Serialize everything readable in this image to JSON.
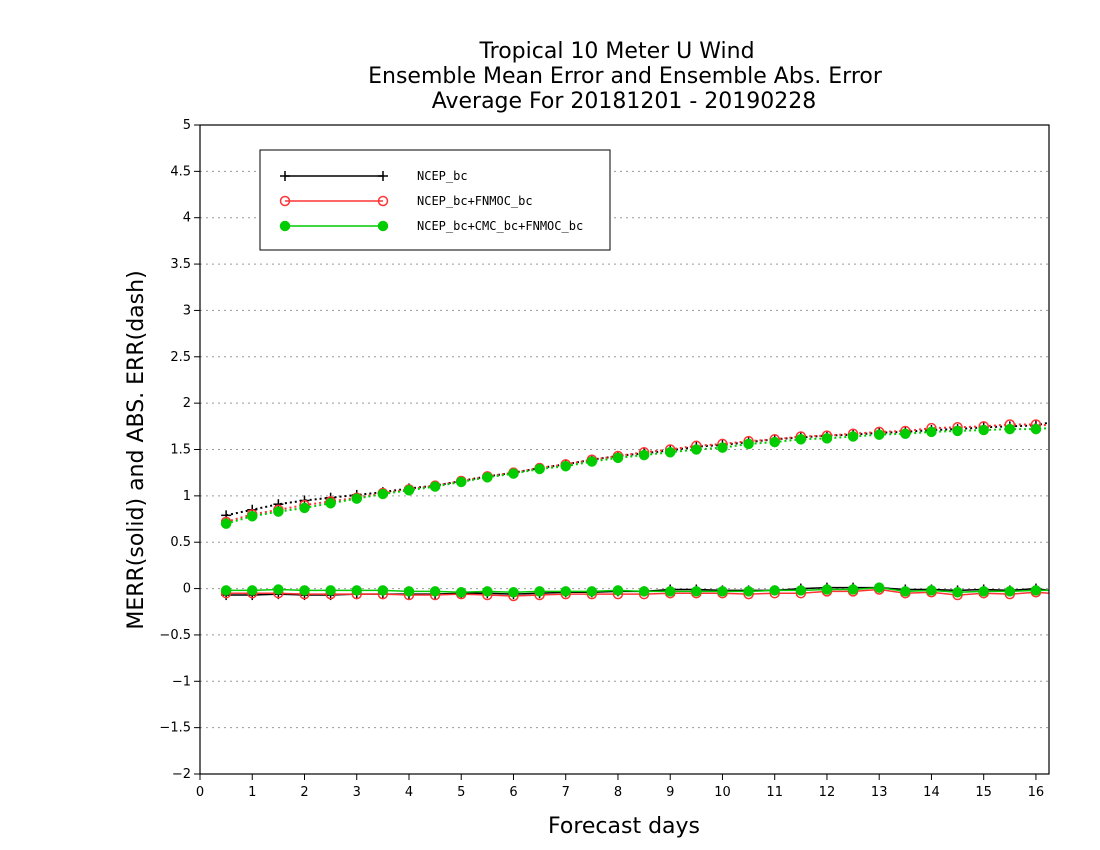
{
  "chart_data": {
    "type": "line",
    "title_lines": [
      "Tropical 10 Meter U Wind",
      "Ensemble Mean Error and Ensemble Abs. Error",
      "Average For 20181201 - 20190228"
    ],
    "xlabel": "Forecast days",
    "ylabel": "MERR(solid) and ABS. ERR(dash)",
    "xlim": [
      0,
      16.25
    ],
    "ylim": [
      -2,
      5
    ],
    "x_ticks": [
      "0",
      "1",
      "2",
      "3",
      "4",
      "5",
      "6",
      "7",
      "8",
      "9",
      "10",
      "11",
      "12",
      "13",
      "14",
      "15",
      "16"
    ],
    "y_ticks": [
      "−2",
      "−1.5",
      "−1",
      "−0.5",
      "0",
      "0.5",
      "1",
      "1.5",
      "2",
      "2.5",
      "3",
      "3.5",
      "4",
      "4.5",
      "5"
    ],
    "y_tick_values": [
      -2,
      -1.5,
      -1,
      -0.5,
      0,
      0.5,
      1,
      1.5,
      2,
      2.5,
      3,
      3.5,
      4,
      4.5,
      5
    ],
    "grid": "horizontal dotted",
    "legend_position": "top-left",
    "x": [
      0.5,
      1,
      1.5,
      2,
      2.5,
      3,
      3.5,
      4,
      4.5,
      5,
      5.5,
      6,
      6.5,
      7,
      7.5,
      8,
      8.5,
      9,
      9.5,
      10,
      10.5,
      11,
      11.5,
      12,
      12.5,
      13,
      13.5,
      14,
      14.5,
      15,
      15.5,
      16,
      16.25
    ],
    "series": [
      {
        "name": "NCEP_bc",
        "color": "#000000",
        "marker": "plus",
        "merr": [
          -0.07,
          -0.07,
          -0.06,
          -0.07,
          -0.07,
          -0.06,
          -0.06,
          -0.06,
          -0.06,
          -0.05,
          -0.05,
          -0.06,
          -0.05,
          -0.04,
          -0.04,
          -0.03,
          -0.03,
          -0.01,
          -0.01,
          -0.02,
          -0.02,
          -0.02,
          0.0,
          0.01,
          0.01,
          0.01,
          -0.01,
          -0.01,
          -0.02,
          -0.01,
          -0.02,
          0.0,
          -0.02
        ],
        "abs_err": [
          0.79,
          0.85,
          0.91,
          0.95,
          0.98,
          1.01,
          1.04,
          1.08,
          1.11,
          1.16,
          1.21,
          1.25,
          1.3,
          1.34,
          1.39,
          1.43,
          1.46,
          1.49,
          1.53,
          1.55,
          1.58,
          1.61,
          1.63,
          1.65,
          1.66,
          1.68,
          1.69,
          1.71,
          1.72,
          1.74,
          1.75,
          1.76,
          1.79
        ]
      },
      {
        "name": "NCEP_bc+FNMOC_bc",
        "color": "#ff3333",
        "marker": "open-circle",
        "merr": [
          -0.05,
          -0.05,
          -0.05,
          -0.06,
          -0.06,
          -0.06,
          -0.06,
          -0.07,
          -0.07,
          -0.06,
          -0.07,
          -0.08,
          -0.07,
          -0.06,
          -0.06,
          -0.06,
          -0.06,
          -0.05,
          -0.05,
          -0.05,
          -0.06,
          -0.05,
          -0.05,
          -0.03,
          -0.03,
          -0.01,
          -0.05,
          -0.04,
          -0.07,
          -0.05,
          -0.06,
          -0.04,
          -0.05
        ],
        "abs_err": [
          0.72,
          0.8,
          0.85,
          0.9,
          0.94,
          0.98,
          1.03,
          1.07,
          1.11,
          1.16,
          1.21,
          1.25,
          1.3,
          1.34,
          1.39,
          1.43,
          1.47,
          1.5,
          1.54,
          1.56,
          1.59,
          1.61,
          1.64,
          1.65,
          1.67,
          1.69,
          1.7,
          1.73,
          1.74,
          1.75,
          1.77,
          1.77,
          1.76
        ]
      },
      {
        "name": "NCEP_bc+CMC_bc+FNMOC_bc",
        "color": "#00cc00",
        "marker": "filled-circle",
        "merr": [
          -0.02,
          -0.02,
          -0.01,
          -0.02,
          -0.02,
          -0.02,
          -0.02,
          -0.03,
          -0.03,
          -0.04,
          -0.03,
          -0.04,
          -0.03,
          -0.03,
          -0.03,
          -0.02,
          -0.03,
          -0.03,
          -0.03,
          -0.03,
          -0.03,
          -0.02,
          -0.02,
          -0.01,
          -0.01,
          0.01,
          -0.03,
          -0.02,
          -0.04,
          -0.03,
          -0.03,
          -0.02,
          -0.02
        ],
        "abs_err": [
          0.7,
          0.78,
          0.83,
          0.87,
          0.92,
          0.97,
          1.02,
          1.06,
          1.1,
          1.15,
          1.2,
          1.24,
          1.29,
          1.32,
          1.37,
          1.41,
          1.44,
          1.47,
          1.5,
          1.52,
          1.56,
          1.58,
          1.61,
          1.62,
          1.64,
          1.66,
          1.67,
          1.69,
          1.7,
          1.71,
          1.72,
          1.72,
          1.73
        ]
      }
    ]
  }
}
